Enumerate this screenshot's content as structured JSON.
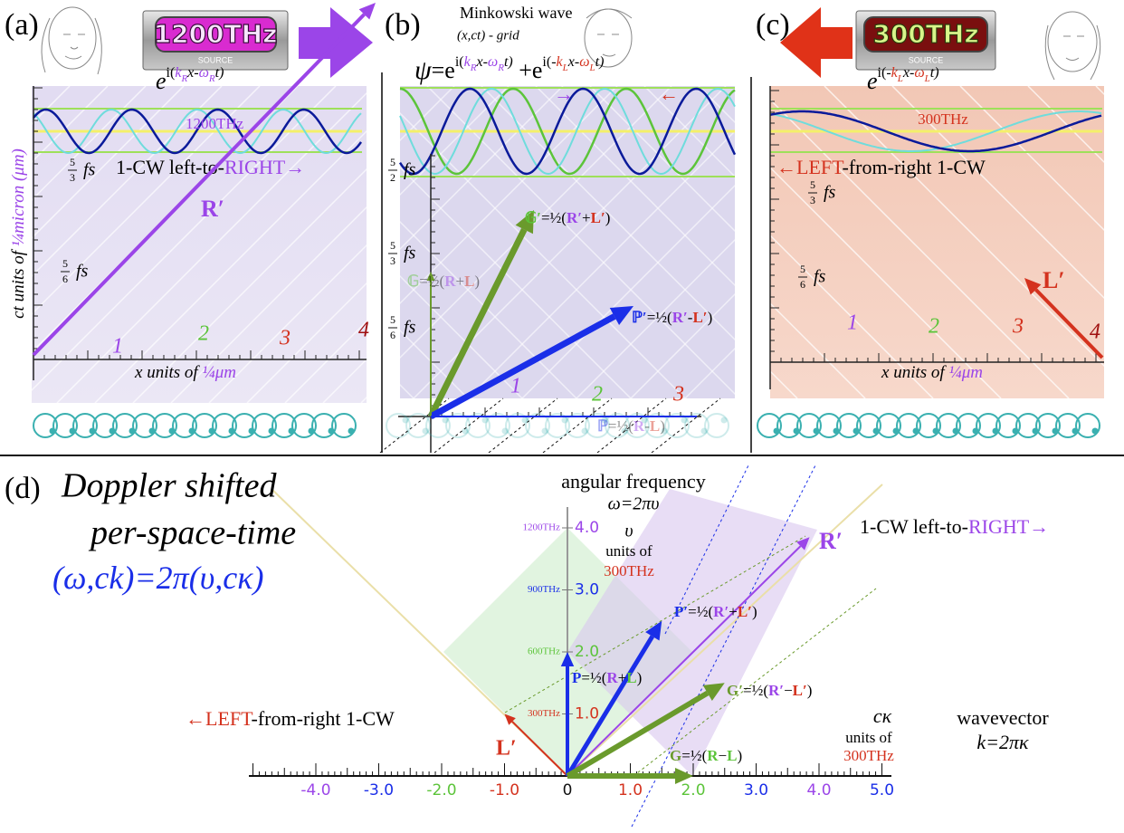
{
  "panel_a": {
    "label": "(a)",
    "source": {
      "frequency": "1200THz",
      "caption": "SOURCE"
    },
    "formula": [
      "e",
      "i(",
      "k",
      "R",
      "x-",
      "ω",
      "R",
      "t)"
    ],
    "wave_label": "1200THz",
    "direction": [
      "1-CW left-to-",
      "RIGHT→"
    ],
    "time_labels": [
      {
        "numerator": "5",
        "denominator": "3",
        "unit": "fs"
      },
      {
        "numerator": "5",
        "denominator": "6",
        "unit": "fs"
      }
    ],
    "x_labels": [
      "1",
      "2",
      "3",
      "4"
    ],
    "x_axis_title": [
      "x units of ",
      "¼",
      "μm"
    ],
    "y_axis_title": [
      "ct units of ",
      "¼micron (μm)"
    ],
    "vector": "R′"
  },
  "panel_b": {
    "label": "(b)",
    "title": [
      "Minkowski wave",
      "(x,ct) - grid"
    ],
    "formula": [
      "ψ",
      "=e",
      "i(",
      "k",
      "R",
      "x-",
      "ω",
      "R",
      "t)",
      " +e",
      "i(-",
      "k",
      "L",
      "x-",
      "ω",
      "L",
      "t)"
    ],
    "arrows": [
      "→",
      "←"
    ],
    "time_labels": [
      {
        "numerator": "5",
        "denominator": "2",
        "unit": "fs"
      },
      {
        "numerator": "5",
        "denominator": "3",
        "unit": "fs"
      },
      {
        "numerator": "5",
        "denominator": "6",
        "unit": "fs"
      }
    ],
    "x_labels": [
      "1",
      "2",
      "3"
    ],
    "vectors": [
      [
        "𝔾′",
        "=½(",
        "R′",
        "+",
        "L′",
        ")"
      ],
      [
        "ℙ′",
        "=½(",
        "R′",
        "-",
        "L′",
        ")"
      ],
      [
        "𝔾",
        "=½(",
        "R",
        "+",
        "L",
        ")"
      ],
      [
        "ℙ",
        "=½(",
        "R",
        "-",
        "L",
        ")"
      ]
    ]
  },
  "panel_c": {
    "label": "(c)",
    "source": {
      "frequency": "300THz",
      "caption": "SOURCE"
    },
    "formula": [
      "e",
      "i(-",
      "k",
      "L",
      "x-",
      "ω",
      "L",
      "t)"
    ],
    "wave_label": "300THz",
    "direction": [
      "←LEFT",
      "-from-right 1-CW"
    ],
    "time_labels": [
      {
        "numerator": "5",
        "denominator": "3",
        "unit": "fs"
      },
      {
        "numerator": "5",
        "denominator": "6",
        "unit": "fs"
      }
    ],
    "x_labels": [
      "1",
      "2",
      "3",
      "4"
    ],
    "x_axis_title": [
      "x units of ",
      "¼",
      "μm"
    ],
    "vector": "L′"
  },
  "panel_d": {
    "label": "(d)",
    "title": [
      "Doppler shifted",
      "per-space-time"
    ],
    "formula": [
      "(",
      "ω",
      ",",
      "ck",
      ")=2π(",
      "υ",
      ",",
      "cκ",
      ")"
    ],
    "y_axis": {
      "title": [
        "angular frequency",
        "ω=2πυ"
      ],
      "units": [
        "υ",
        "units of",
        "300THz"
      ],
      "ticks": [
        {
          "frequency": "1200THz",
          "value": "4.0"
        },
        {
          "frequency": "900THz",
          "value": "3.0"
        },
        {
          "frequency": "600THz",
          "value": "2.0"
        },
        {
          "frequency": "300THz",
          "value": "1.0"
        }
      ]
    },
    "x_axis": {
      "units": [
        "cκ",
        "units of",
        "300THz"
      ],
      "ticks": [
        "-4.0",
        "-3.0",
        "-2.0",
        "-1.0",
        "0",
        "1.0",
        "2.0",
        "3.0",
        "4.0",
        "5.0"
      ]
    },
    "wavevector": [
      "wavevector",
      "k=2πκ"
    ],
    "right_wave": [
      "1-CW left-to-",
      "RIGHT→"
    ],
    "left_wave": [
      "←LEFT",
      "-from-right 1-CW"
    ],
    "vectors": {
      "R": "R′",
      "L": "L′",
      "P_prime": [
        "P′",
        "=½(",
        "R′",
        "+",
        "L′",
        ")"
      ],
      "P": [
        "P",
        "=½(",
        "R",
        "+",
        "L",
        ")"
      ],
      "G_prime": [
        "G′",
        "=½(",
        "R′",
        "−",
        "L′",
        ")"
      ],
      "G": [
        "G",
        "=½(",
        "R",
        "−",
        "L",
        ")"
      ]
    }
  }
}
